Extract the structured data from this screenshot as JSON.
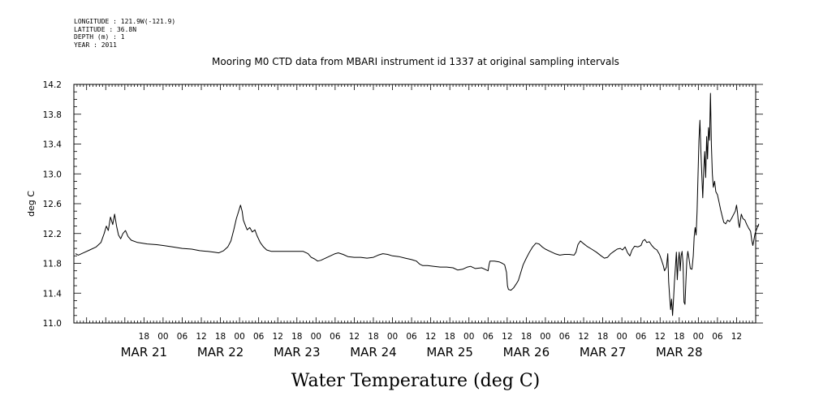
{
  "meta": {
    "longitude": "LONGITUDE : 121.9W(-121.9)",
    "latitude": "LATITUDE : 36.8N",
    "depth": "DEPTH (m) : 1",
    "year": "YEAR : 2011"
  },
  "chart_data": {
    "type": "line",
    "title": "Mooring M0 CTD data from MBARI instrument id 1337 at original sampling intervals",
    "xlabel": "Water Temperature (deg C)",
    "ylabel": "deg C",
    "ylim": [
      11.0,
      14.2
    ],
    "yticks": [
      "11.0",
      "11.4",
      "11.8",
      "12.2",
      "12.6",
      "13.0",
      "13.4",
      "13.8",
      "14.2"
    ],
    "x_unit": "hours since MAR 21 00:00",
    "xlim": [
      -28,
      186
    ],
    "hour_ticks": [
      {
        "h": -6,
        "label": "18"
      },
      {
        "h": 0,
        "label": "00"
      },
      {
        "h": 6,
        "label": "06"
      },
      {
        "h": 12,
        "label": "12"
      },
      {
        "h": 18,
        "label": "18"
      },
      {
        "h": 24,
        "label": "00"
      },
      {
        "h": 30,
        "label": "06"
      },
      {
        "h": 36,
        "label": "12"
      },
      {
        "h": 42,
        "label": "18"
      },
      {
        "h": 48,
        "label": "00"
      },
      {
        "h": 54,
        "label": "06"
      },
      {
        "h": 60,
        "label": "12"
      },
      {
        "h": 66,
        "label": "18"
      },
      {
        "h": 72,
        "label": "00"
      },
      {
        "h": 78,
        "label": "06"
      },
      {
        "h": 84,
        "label": "12"
      },
      {
        "h": 90,
        "label": "18"
      },
      {
        "h": 96,
        "label": "00"
      },
      {
        "h": 102,
        "label": "06"
      },
      {
        "h": 108,
        "label": "12"
      },
      {
        "h": 114,
        "label": "18"
      },
      {
        "h": 120,
        "label": "00"
      },
      {
        "h": 126,
        "label": "06"
      },
      {
        "h": 132,
        "label": "12"
      },
      {
        "h": 138,
        "label": "18"
      },
      {
        "h": 144,
        "label": "00"
      },
      {
        "h": 150,
        "label": "06"
      },
      {
        "h": 156,
        "label": "12"
      },
      {
        "h": 162,
        "label": "18"
      },
      {
        "h": 168,
        "label": "00"
      },
      {
        "h": 174,
        "label": "06"
      },
      {
        "h": 180,
        "label": "12"
      }
    ],
    "day_labels": [
      {
        "h": -6,
        "label": "MAR 21"
      },
      {
        "h": 18,
        "label": "MAR 22"
      },
      {
        "h": 42,
        "label": "MAR 23"
      },
      {
        "h": 66,
        "label": "MAR 24"
      },
      {
        "h": 90,
        "label": "MAR 25"
      },
      {
        "h": 114,
        "label": "MAR 26"
      },
      {
        "h": 138,
        "label": "MAR 27"
      },
      {
        "h": 162,
        "label": "MAR 28"
      }
    ],
    "series": [
      {
        "color": "#000000",
        "points": [
          [
            -27.5,
            11.93
          ],
          [
            -26.6,
            11.91
          ],
          [
            -25,
            11.94
          ],
          [
            -23,
            11.98
          ],
          [
            -21,
            12.02
          ],
          [
            -19.5,
            12.08
          ],
          [
            -18.5,
            12.2
          ],
          [
            -17.8,
            12.3
          ],
          [
            -17.2,
            12.24
          ],
          [
            -16.5,
            12.42
          ],
          [
            -15.8,
            12.32
          ],
          [
            -15.2,
            12.46
          ],
          [
            -14.6,
            12.3
          ],
          [
            -14,
            12.18
          ],
          [
            -13.3,
            12.13
          ],
          [
            -12.6,
            12.2
          ],
          [
            -11.8,
            12.24
          ],
          [
            -11,
            12.16
          ],
          [
            -10,
            12.11
          ],
          [
            -8,
            12.08
          ],
          [
            -5,
            12.06
          ],
          [
            -2,
            12.05
          ],
          [
            0,
            12.04
          ],
          [
            3,
            12.02
          ],
          [
            6,
            12.0
          ],
          [
            9,
            11.99
          ],
          [
            11.5,
            11.97
          ],
          [
            14,
            11.96
          ],
          [
            16,
            11.95
          ],
          [
            17.5,
            11.94
          ],
          [
            19,
            11.97
          ],
          [
            20.3,
            12.02
          ],
          [
            21.3,
            12.1
          ],
          [
            22.2,
            12.25
          ],
          [
            23,
            12.4
          ],
          [
            23.6,
            12.48
          ],
          [
            24.3,
            12.58
          ],
          [
            24.8,
            12.5
          ],
          [
            25.2,
            12.38
          ],
          [
            25.9,
            12.3
          ],
          [
            26.4,
            12.25
          ],
          [
            27.2,
            12.28
          ],
          [
            28,
            12.22
          ],
          [
            28.8,
            12.25
          ],
          [
            29.5,
            12.17
          ],
          [
            30.5,
            12.08
          ],
          [
            31.5,
            12.02
          ],
          [
            32.5,
            11.98
          ],
          [
            34,
            11.96
          ],
          [
            36,
            11.96
          ],
          [
            38,
            11.96
          ],
          [
            40,
            11.96
          ],
          [
            42,
            11.96
          ],
          [
            44,
            11.96
          ],
          [
            45.5,
            11.93
          ],
          [
            46.5,
            11.88
          ],
          [
            47.5,
            11.86
          ],
          [
            48.5,
            11.83
          ],
          [
            49.5,
            11.84
          ],
          [
            51,
            11.87
          ],
          [
            52.5,
            11.9
          ],
          [
            54,
            11.93
          ],
          [
            55,
            11.94
          ],
          [
            56.5,
            11.92
          ],
          [
            58,
            11.89
          ],
          [
            60,
            11.88
          ],
          [
            62,
            11.88
          ],
          [
            64,
            11.87
          ],
          [
            66,
            11.88
          ],
          [
            67.5,
            11.91
          ],
          [
            69,
            11.93
          ],
          [
            70.5,
            11.92
          ],
          [
            72,
            11.9
          ],
          [
            74,
            11.89
          ],
          [
            76,
            11.87
          ],
          [
            78,
            11.85
          ],
          [
            79.5,
            11.83
          ],
          [
            80.5,
            11.79
          ],
          [
            81.5,
            11.77
          ],
          [
            83,
            11.77
          ],
          [
            85,
            11.76
          ],
          [
            87,
            11.75
          ],
          [
            89,
            11.75
          ],
          [
            91,
            11.74
          ],
          [
            92.5,
            11.71
          ],
          [
            94,
            11.72
          ],
          [
            95.5,
            11.75
          ],
          [
            96.5,
            11.76
          ],
          [
            98,
            11.73
          ],
          [
            100,
            11.74
          ],
          [
            101,
            11.72
          ],
          [
            102,
            11.7
          ],
          [
            102.3,
            11.78
          ],
          [
            102.6,
            11.83
          ],
          [
            104,
            11.83
          ],
          [
            105.5,
            11.82
          ],
          [
            106.5,
            11.8
          ],
          [
            107.2,
            11.78
          ],
          [
            107.8,
            11.68
          ],
          [
            108.1,
            11.5
          ],
          [
            108.4,
            11.45
          ],
          [
            109.2,
            11.44
          ],
          [
            110,
            11.47
          ],
          [
            110.8,
            11.52
          ],
          [
            111.5,
            11.57
          ],
          [
            112.3,
            11.68
          ],
          [
            113,
            11.78
          ],
          [
            114,
            11.87
          ],
          [
            115,
            11.95
          ],
          [
            116,
            12.02
          ],
          [
            117,
            12.07
          ],
          [
            118,
            12.06
          ],
          [
            119,
            12.02
          ],
          [
            120,
            11.99
          ],
          [
            121.5,
            11.96
          ],
          [
            123,
            11.93
          ],
          [
            124.5,
            11.91
          ],
          [
            126,
            11.92
          ],
          [
            127.5,
            11.92
          ],
          [
            129,
            11.91
          ],
          [
            129.6,
            11.95
          ],
          [
            130.2,
            12.05
          ],
          [
            131,
            12.1
          ],
          [
            131.8,
            12.07
          ],
          [
            133,
            12.03
          ],
          [
            134.5,
            11.99
          ],
          [
            136,
            11.95
          ],
          [
            137.5,
            11.9
          ],
          [
            138.5,
            11.87
          ],
          [
            139.5,
            11.88
          ],
          [
            140.5,
            11.93
          ],
          [
            141.5,
            11.96
          ],
          [
            142.5,
            11.99
          ],
          [
            143.5,
            12.0
          ],
          [
            144.2,
            11.98
          ],
          [
            145,
            12.02
          ],
          [
            145.8,
            11.94
          ],
          [
            146.5,
            11.9
          ],
          [
            147.2,
            11.98
          ],
          [
            148,
            12.03
          ],
          [
            149,
            12.02
          ],
          [
            150,
            12.04
          ],
          [
            150.6,
            12.1
          ],
          [
            151.2,
            12.12
          ],
          [
            151.8,
            12.08
          ],
          [
            152.6,
            12.09
          ],
          [
            153.4,
            12.04
          ],
          [
            154.2,
            12.0
          ],
          [
            155,
            11.98
          ],
          [
            155.8,
            11.92
          ],
          [
            156.4,
            11.85
          ],
          [
            157,
            11.77
          ],
          [
            157.4,
            11.7
          ],
          [
            158,
            11.75
          ],
          [
            158.4,
            11.93
          ],
          [
            158.7,
            11.55
          ],
          [
            159,
            11.35
          ],
          [
            159.3,
            11.18
          ],
          [
            159.6,
            11.32
          ],
          [
            159.9,
            11.1
          ],
          [
            160.2,
            11.3
          ],
          [
            160.5,
            11.55
          ],
          [
            160.8,
            11.75
          ],
          [
            161.1,
            11.95
          ],
          [
            161.4,
            11.58
          ],
          [
            161.7,
            11.82
          ],
          [
            162,
            11.95
          ],
          [
            162.3,
            11.7
          ],
          [
            162.6,
            11.9
          ],
          [
            162.9,
            11.96
          ],
          [
            163.2,
            11.8
          ],
          [
            163.5,
            11.28
          ],
          [
            163.8,
            11.25
          ],
          [
            164.1,
            11.55
          ],
          [
            164.4,
            11.85
          ],
          [
            164.7,
            11.96
          ],
          [
            165,
            11.88
          ],
          [
            165.5,
            11.73
          ],
          [
            166,
            11.72
          ],
          [
            166.4,
            11.9
          ],
          [
            166.7,
            12.15
          ],
          [
            167,
            12.28
          ],
          [
            167.3,
            12.18
          ],
          [
            167.6,
            12.5
          ],
          [
            167.9,
            13.0
          ],
          [
            168.2,
            13.45
          ],
          [
            168.5,
            13.72
          ],
          [
            168.8,
            13.3
          ],
          [
            169.1,
            12.97
          ],
          [
            169.4,
            12.68
          ],
          [
            169.7,
            13.05
          ],
          [
            170,
            13.3
          ],
          [
            170.3,
            12.95
          ],
          [
            170.6,
            13.5
          ],
          [
            170.9,
            13.2
          ],
          [
            171.2,
            13.62
          ],
          [
            171.5,
            13.45
          ],
          [
            171.8,
            14.08
          ],
          [
            172.1,
            13.4
          ],
          [
            172.4,
            13.0
          ],
          [
            172.7,
            12.82
          ],
          [
            173.1,
            12.9
          ],
          [
            173.5,
            12.76
          ],
          [
            174,
            12.72
          ],
          [
            174.5,
            12.62
          ],
          [
            175,
            12.52
          ],
          [
            175.5,
            12.43
          ],
          [
            176,
            12.35
          ],
          [
            176.6,
            12.33
          ],
          [
            177.2,
            12.38
          ],
          [
            177.8,
            12.36
          ],
          [
            178.4,
            12.4
          ],
          [
            179,
            12.45
          ],
          [
            179.6,
            12.5
          ],
          [
            180,
            12.58
          ],
          [
            180.3,
            12.48
          ],
          [
            180.6,
            12.34
          ],
          [
            180.9,
            12.28
          ],
          [
            181.2,
            12.38
          ],
          [
            181.5,
            12.46
          ],
          [
            182,
            12.4
          ],
          [
            182.6,
            12.38
          ],
          [
            183.2,
            12.32
          ],
          [
            183.8,
            12.27
          ],
          [
            184.4,
            12.23
          ],
          [
            184.8,
            12.1
          ],
          [
            185.1,
            12.04
          ],
          [
            185.4,
            12.1
          ],
          [
            185.8,
            12.2
          ],
          [
            186.4,
            12.27
          ],
          [
            187,
            12.33
          ]
        ]
      }
    ]
  }
}
